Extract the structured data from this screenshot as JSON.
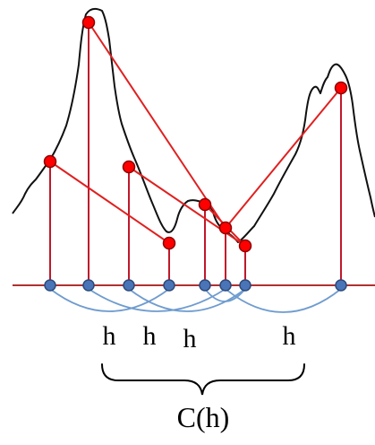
{
  "diagram": {
    "h_labels": [
      "h",
      "h",
      "h",
      "h"
    ],
    "brace_label": "C(h)"
  },
  "colors": {
    "curve": "#111111",
    "connector": "#e02020",
    "stem": "#c0182a",
    "baseline": "#b03030",
    "sample_point": "#ff0000",
    "sample_point_outline": "#8b0000",
    "axis_point": "#4a74b8",
    "axis_point_outline": "#2c4a7a",
    "arc": "#6f9ccf",
    "brace": "#000000"
  }
}
